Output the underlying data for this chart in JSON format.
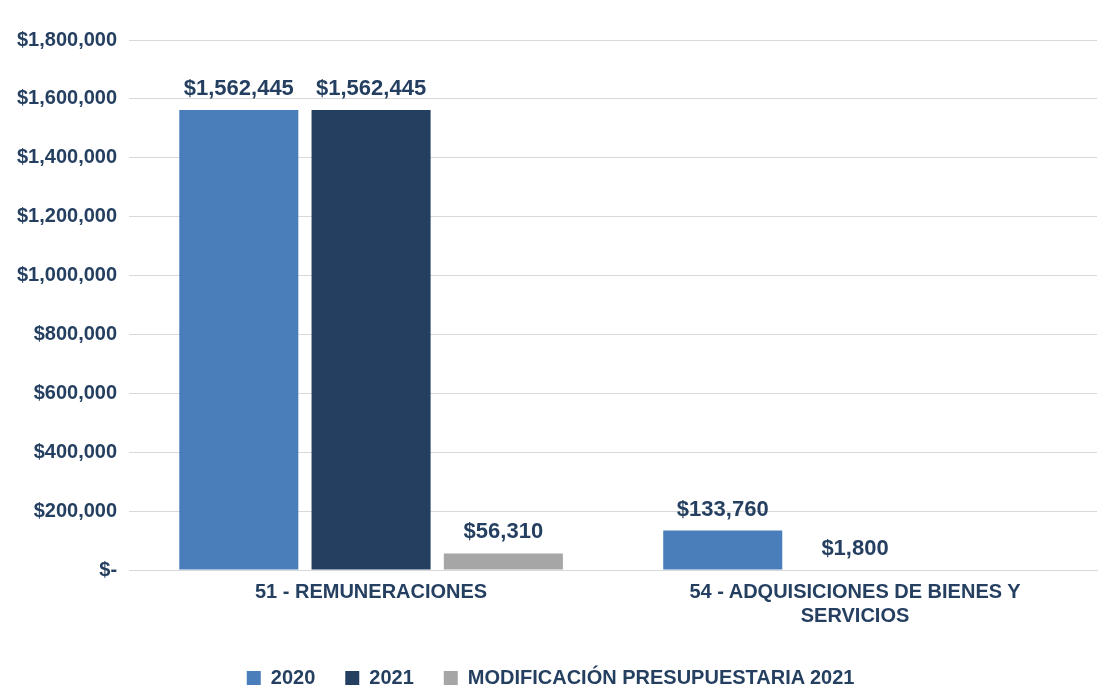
{
  "chart_data": {
    "type": "bar",
    "categories": [
      "51 - REMUNERACIONES",
      "54 - ADQUISICIONES DE BIENES Y SERVICIOS"
    ],
    "series": [
      {
        "name": "2020",
        "color": "#4a7ebb",
        "values": [
          1562445,
          133760
        ],
        "value_labels": [
          "$1,562,445",
          "$133,760"
        ]
      },
      {
        "name": "2021",
        "color": "#243f60",
        "values": [
          1562445,
          1800
        ],
        "value_labels": [
          "$1,562,445",
          "$1,800"
        ]
      },
      {
        "name": "MODIFICACIÓN PRESUPUESTARIA 2021",
        "color": "#a6a6a6",
        "values": [
          56310,
          null
        ],
        "value_labels": [
          "$56,310",
          null
        ]
      }
    ],
    "ylim": [
      0,
      1800000
    ],
    "yticks": [
      {
        "value": 0,
        "label": "$-"
      },
      {
        "value": 200000,
        "label": "$200,000"
      },
      {
        "value": 400000,
        "label": "$400,000"
      },
      {
        "value": 600000,
        "label": "$600,000"
      },
      {
        "value": 800000,
        "label": "$800,000"
      },
      {
        "value": 1000000,
        "label": "$1,000,000"
      },
      {
        "value": 1200000,
        "label": "$1,200,000"
      },
      {
        "value": 1400000,
        "label": "$1,400,000"
      },
      {
        "value": 1600000,
        "label": "$1,600,000"
      },
      {
        "value": 1800000,
        "label": "$1,800,000"
      }
    ],
    "grid": "y",
    "legend": "bottom"
  }
}
